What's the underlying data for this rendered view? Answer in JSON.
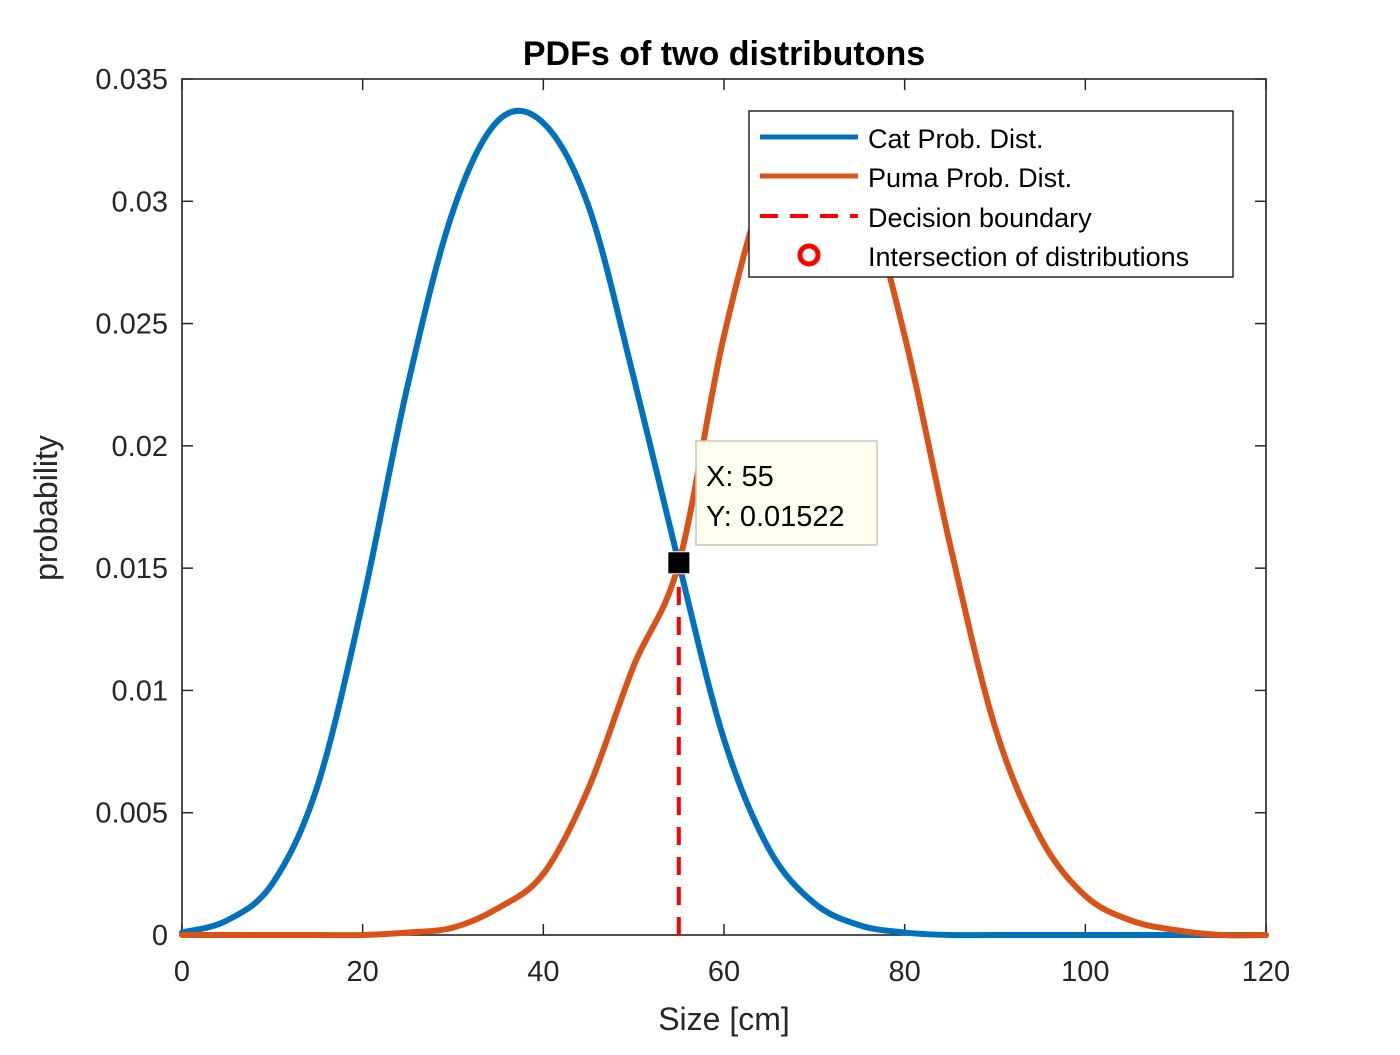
{
  "chart_data": {
    "type": "line",
    "title": "PDFs of two distributons",
    "xlabel": "Size [cm]",
    "ylabel": "probability",
    "xlim": [
      0,
      120
    ],
    "ylim": [
      0,
      0.035
    ],
    "x_ticks": [
      0,
      20,
      40,
      60,
      80,
      100,
      120
    ],
    "y_ticks": [
      0,
      0.005,
      0.01,
      0.015,
      0.02,
      0.025,
      0.03,
      0.035
    ],
    "x_tick_labels": [
      "0",
      "20",
      "40",
      "60",
      "80",
      "100",
      "120"
    ],
    "y_tick_labels": [
      "0",
      "0.005",
      "0.01",
      "0.015",
      "0.02",
      "0.025",
      "0.03",
      "0.035"
    ],
    "grid": false,
    "legend_position": "top-right",
    "series": [
      {
        "name": "Cat Prob. Dist.",
        "color": "#0072BD",
        "x": [
          0,
          5,
          10,
          15,
          20,
          25,
          30,
          35,
          40,
          45,
          50,
          55,
          60,
          65,
          70,
          75,
          80,
          85,
          90,
          95,
          100,
          105,
          110,
          115,
          120
        ],
        "y": [
          0.0001,
          0.0006,
          0.0021,
          0.0061,
          0.0136,
          0.0225,
          0.0296,
          0.0333,
          0.0332,
          0.0298,
          0.0228,
          0.0152,
          0.008,
          0.0035,
          0.0013,
          0.0004,
          0.0001,
          0.0,
          0.0,
          0.0,
          0.0,
          0.0,
          0.0,
          0.0,
          0.0
        ]
      },
      {
        "name": "Puma Prob. Dist.",
        "color": "#D95319",
        "x": [
          0,
          5,
          10,
          15,
          20,
          25,
          30,
          35,
          40,
          45,
          50,
          55,
          60,
          65,
          70,
          75,
          80,
          85,
          90,
          95,
          100,
          105,
          110,
          115,
          120
        ],
        "y": [
          0.0,
          0.0,
          0.0,
          0.0,
          0.0,
          0.0001,
          0.0003,
          0.0011,
          0.0025,
          0.006,
          0.011,
          0.0152,
          0.0245,
          0.031,
          0.0331,
          0.031,
          0.0245,
          0.016,
          0.0085,
          0.004,
          0.0016,
          0.0006,
          0.0002,
          0.0,
          0.0
        ]
      }
    ],
    "decision_boundary": {
      "name": "Decision boundary",
      "x": 55,
      "color": "#FF0000",
      "style": "dashed"
    },
    "intersection": {
      "name": "Intersection of distributions",
      "color": "#FF0000",
      "marker": "circle"
    },
    "datatip": {
      "x": 55,
      "y": 0.01522,
      "x_text": "X: 55",
      "y_text": "Y: 0.01522"
    }
  }
}
